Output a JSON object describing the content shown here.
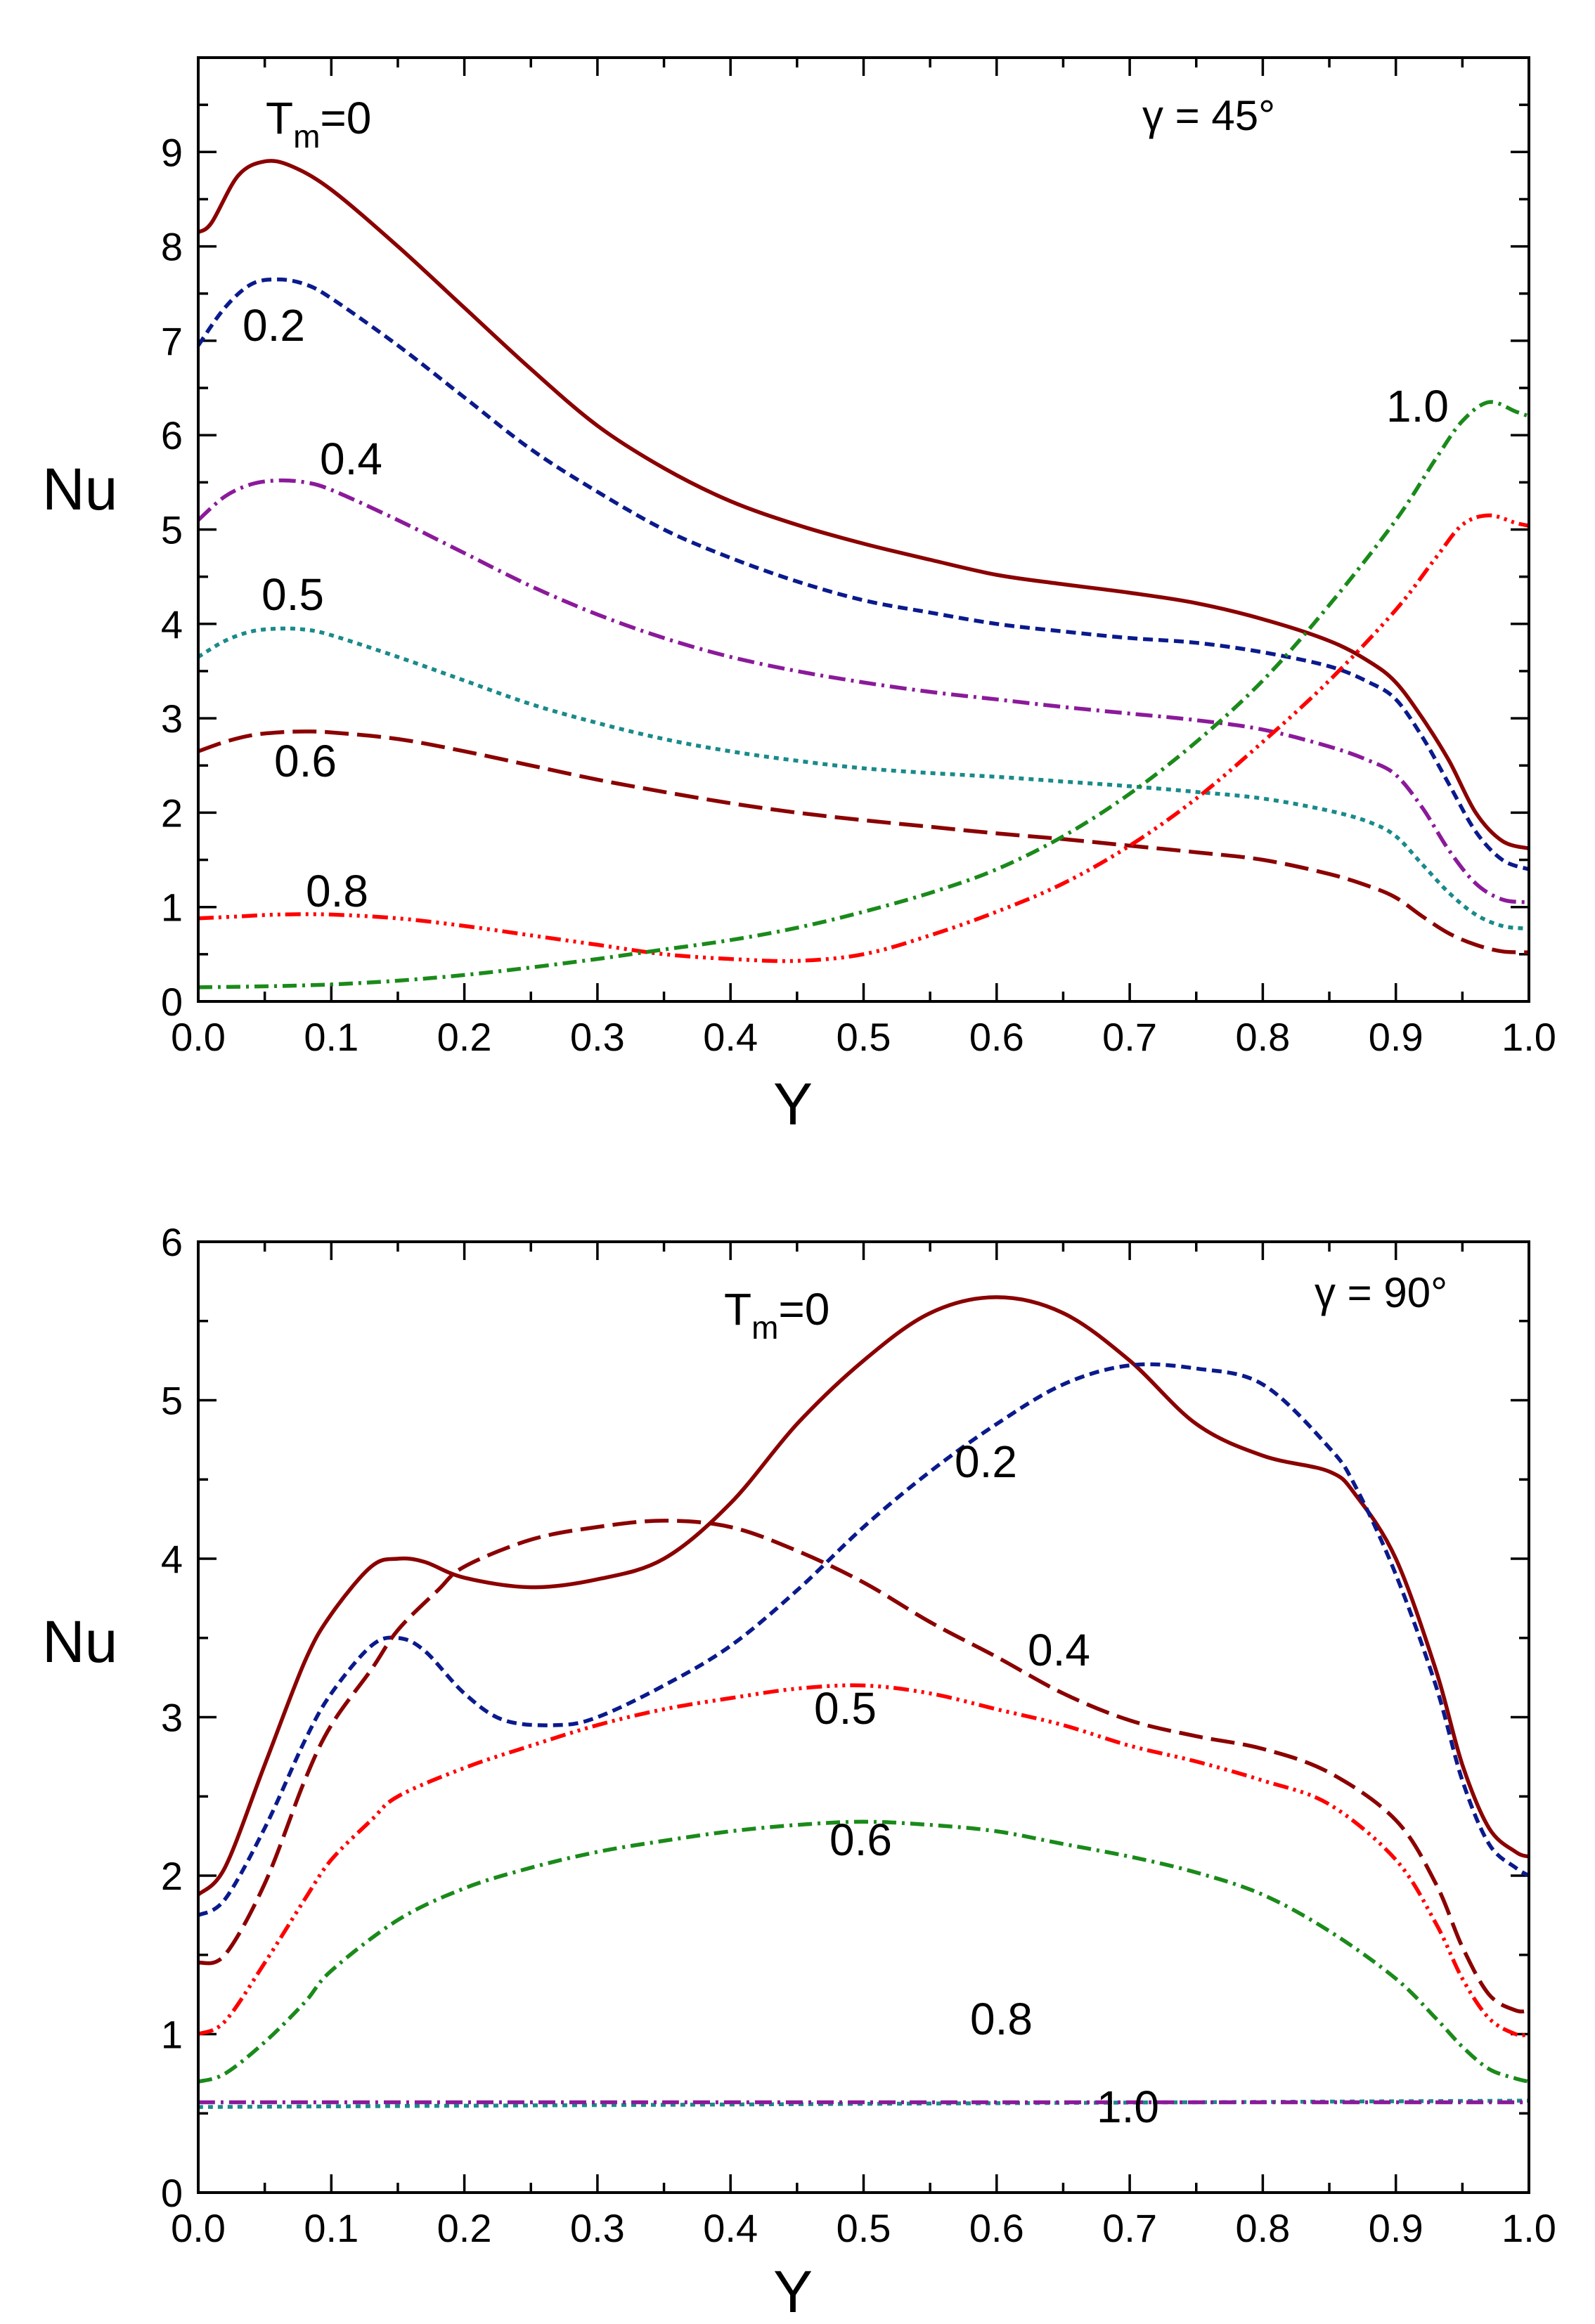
{
  "chart_data": [
    {
      "type": "line",
      "panel": "top",
      "annotation": "γ = 45°",
      "xlabel": "Y",
      "ylabel": "Nu",
      "xlim": [
        0.0,
        1.0
      ],
      "ylim": [
        0,
        10
      ],
      "xticks": [
        "0.0",
        "0.1",
        "0.2",
        "0.3",
        "0.4",
        "0.5",
        "0.6",
        "0.7",
        "0.8",
        "0.9",
        "1.0"
      ],
      "yticks": [
        "0",
        "1",
        "2",
        "3",
        "4",
        "5",
        "6",
        "7",
        "8",
        "9"
      ],
      "legend": "inline labels",
      "series": [
        {
          "name": "Tm=0",
          "label_base": "T",
          "label_sub": "m",
          "label_rest": "=0",
          "color": "#8b0000",
          "dash": "solid",
          "x": [
            0,
            0.01,
            0.03,
            0.05,
            0.07,
            0.1,
            0.15,
            0.2,
            0.25,
            0.3,
            0.35,
            0.4,
            0.45,
            0.5,
            0.55,
            0.6,
            0.65,
            0.7,
            0.75,
            0.8,
            0.85,
            0.88,
            0.9,
            0.92,
            0.94,
            0.96,
            0.98,
            1.0
          ],
          "y": [
            8.15,
            8.25,
            8.75,
            8.9,
            8.85,
            8.6,
            8.0,
            7.35,
            6.7,
            6.1,
            5.65,
            5.3,
            5.05,
            4.85,
            4.68,
            4.52,
            4.42,
            4.33,
            4.22,
            4.05,
            3.82,
            3.6,
            3.38,
            3.0,
            2.55,
            2.0,
            1.7,
            1.62
          ]
        },
        {
          "name": "0.2",
          "color": "#0a1a8c",
          "dash": "14 8",
          "x": [
            0,
            0.02,
            0.04,
            0.06,
            0.08,
            0.1,
            0.15,
            0.2,
            0.25,
            0.3,
            0.35,
            0.4,
            0.45,
            0.5,
            0.55,
            0.6,
            0.65,
            0.7,
            0.75,
            0.8,
            0.85,
            0.88,
            0.9,
            0.92,
            0.94,
            0.96,
            0.98,
            1.0
          ],
          "y": [
            6.95,
            7.35,
            7.6,
            7.65,
            7.6,
            7.45,
            6.95,
            6.4,
            5.85,
            5.4,
            5.0,
            4.7,
            4.45,
            4.25,
            4.12,
            4.0,
            3.92,
            3.85,
            3.8,
            3.7,
            3.55,
            3.38,
            3.2,
            2.8,
            2.3,
            1.8,
            1.5,
            1.4
          ]
        },
        {
          "name": "0.4",
          "color": "#8b1a9a",
          "dash": "24 8 4 8",
          "x": [
            0,
            0.02,
            0.04,
            0.06,
            0.08,
            0.1,
            0.15,
            0.2,
            0.25,
            0.3,
            0.35,
            0.4,
            0.45,
            0.5,
            0.55,
            0.6,
            0.65,
            0.7,
            0.75,
            0.8,
            0.85,
            0.88,
            0.9,
            0.92,
            0.94,
            0.96,
            0.98,
            1.0
          ],
          "y": [
            5.1,
            5.35,
            5.48,
            5.52,
            5.5,
            5.42,
            5.1,
            4.75,
            4.4,
            4.1,
            3.85,
            3.65,
            3.5,
            3.38,
            3.28,
            3.2,
            3.12,
            3.05,
            2.98,
            2.88,
            2.7,
            2.55,
            2.4,
            2.05,
            1.6,
            1.25,
            1.08,
            1.05
          ]
        },
        {
          "name": "0.5",
          "color": "#1a8a8a",
          "dash": "7 7",
          "x": [
            0,
            0.02,
            0.04,
            0.06,
            0.08,
            0.1,
            0.15,
            0.2,
            0.25,
            0.3,
            0.35,
            0.4,
            0.45,
            0.5,
            0.55,
            0.6,
            0.65,
            0.7,
            0.75,
            0.8,
            0.85,
            0.88,
            0.9,
            0.92,
            0.94,
            0.96,
            0.98,
            1.0
          ],
          "y": [
            3.65,
            3.82,
            3.92,
            3.95,
            3.94,
            3.88,
            3.65,
            3.4,
            3.15,
            2.95,
            2.78,
            2.65,
            2.55,
            2.47,
            2.42,
            2.38,
            2.33,
            2.28,
            2.22,
            2.15,
            2.02,
            1.9,
            1.75,
            1.45,
            1.15,
            0.92,
            0.8,
            0.77
          ]
        },
        {
          "name": "0.6",
          "color": "#8b0000",
          "dash": "34 12",
          "x": [
            0,
            0.02,
            0.04,
            0.06,
            0.08,
            0.1,
            0.15,
            0.2,
            0.25,
            0.3,
            0.35,
            0.4,
            0.45,
            0.5,
            0.55,
            0.6,
            0.65,
            0.7,
            0.75,
            0.8,
            0.85,
            0.88,
            0.9,
            0.92,
            0.94,
            0.96,
            0.98,
            1.0
          ],
          "y": [
            2.65,
            2.75,
            2.82,
            2.85,
            2.86,
            2.85,
            2.78,
            2.65,
            2.5,
            2.35,
            2.22,
            2.1,
            2.0,
            1.92,
            1.85,
            1.78,
            1.72,
            1.65,
            1.58,
            1.5,
            1.35,
            1.22,
            1.1,
            0.9,
            0.72,
            0.6,
            0.53,
            0.52
          ]
        },
        {
          "name": "0.8",
          "color": "#ff0000",
          "dash": "22 7 4 7 4 7 4 7",
          "x": [
            0,
            0.03,
            0.06,
            0.1,
            0.15,
            0.2,
            0.25,
            0.3,
            0.35,
            0.4,
            0.45,
            0.5,
            0.55,
            0.6,
            0.65,
            0.7,
            0.75,
            0.8,
            0.85,
            0.9,
            0.93,
            0.95,
            0.97,
            0.99,
            1.0
          ],
          "y": [
            0.88,
            0.9,
            0.92,
            0.92,
            0.88,
            0.8,
            0.7,
            0.6,
            0.5,
            0.45,
            0.43,
            0.5,
            0.7,
            0.95,
            1.25,
            1.65,
            2.15,
            2.75,
            3.4,
            4.15,
            4.7,
            5.05,
            5.15,
            5.07,
            5.04
          ]
        },
        {
          "name": "1.0",
          "color": "#1a8a1a",
          "dash": "20 8 4 8",
          "x": [
            0,
            0.05,
            0.1,
            0.15,
            0.2,
            0.25,
            0.3,
            0.35,
            0.4,
            0.45,
            0.5,
            0.55,
            0.6,
            0.65,
            0.7,
            0.75,
            0.8,
            0.85,
            0.9,
            0.93,
            0.95,
            0.97,
            0.99,
            1.0
          ],
          "y": [
            0.15,
            0.16,
            0.18,
            0.22,
            0.28,
            0.36,
            0.45,
            0.55,
            0.65,
            0.78,
            0.95,
            1.15,
            1.4,
            1.75,
            2.2,
            2.75,
            3.4,
            4.2,
            5.1,
            5.75,
            6.15,
            6.35,
            6.25,
            6.2
          ]
        }
      ]
    },
    {
      "type": "line",
      "panel": "bottom",
      "annotation": "γ = 90°",
      "xlabel": "Y",
      "ylabel": "Nu",
      "xlim": [
        0.0,
        1.0
      ],
      "ylim": [
        0,
        6
      ],
      "xticks": [
        "0.0",
        "0.1",
        "0.2",
        "0.3",
        "0.4",
        "0.5",
        "0.6",
        "0.7",
        "0.8",
        "0.9",
        "1.0"
      ],
      "yticks": [
        "0",
        "1",
        "2",
        "3",
        "4",
        "5",
        "6"
      ],
      "legend": "inline labels",
      "series": [
        {
          "name": "Tm=0",
          "label_base": "T",
          "label_sub": "m",
          "label_rest": "=0",
          "color": "#8b0000",
          "dash": "solid",
          "x": [
            0,
            0.02,
            0.05,
            0.08,
            0.1,
            0.13,
            0.15,
            0.17,
            0.2,
            0.25,
            0.3,
            0.35,
            0.4,
            0.45,
            0.5,
            0.55,
            0.6,
            0.65,
            0.7,
            0.75,
            0.8,
            0.85,
            0.87,
            0.9,
            0.93,
            0.95,
            0.97,
            0.99,
            1.0
          ],
          "y": [
            1.88,
            2.05,
            2.7,
            3.35,
            3.65,
            3.95,
            4.0,
            3.98,
            3.88,
            3.82,
            3.87,
            4.0,
            4.35,
            4.85,
            5.25,
            5.55,
            5.65,
            5.55,
            5.25,
            4.85,
            4.65,
            4.55,
            4.4,
            4.0,
            3.3,
            2.7,
            2.3,
            2.15,
            2.12
          ]
        },
        {
          "name": "0.2",
          "color": "#0a1a8c",
          "dash": "14 8",
          "x": [
            0,
            0.02,
            0.05,
            0.08,
            0.1,
            0.13,
            0.15,
            0.17,
            0.2,
            0.23,
            0.27,
            0.3,
            0.35,
            0.4,
            0.45,
            0.5,
            0.55,
            0.6,
            0.65,
            0.7,
            0.75,
            0.8,
            0.85,
            0.87,
            0.9,
            0.93,
            0.95,
            0.97,
            0.99,
            1.0
          ],
          "y": [
            1.75,
            1.85,
            2.3,
            2.85,
            3.15,
            3.45,
            3.5,
            3.42,
            3.15,
            2.98,
            2.95,
            3.0,
            3.2,
            3.45,
            3.8,
            4.2,
            4.55,
            4.85,
            5.1,
            5.22,
            5.2,
            5.1,
            4.7,
            4.45,
            3.9,
            3.2,
            2.6,
            2.2,
            2.05,
            2.0
          ]
        },
        {
          "name": "0.4",
          "color": "#8b0000",
          "dash": "34 12",
          "x": [
            0,
            0.02,
            0.05,
            0.08,
            0.1,
            0.13,
            0.15,
            0.18,
            0.2,
            0.25,
            0.3,
            0.35,
            0.4,
            0.45,
            0.5,
            0.55,
            0.6,
            0.65,
            0.7,
            0.75,
            0.8,
            0.85,
            0.9,
            0.93,
            0.95,
            0.97,
            0.99,
            1.0
          ],
          "y": [
            1.45,
            1.5,
            1.95,
            2.6,
            2.95,
            3.3,
            3.55,
            3.8,
            3.95,
            4.12,
            4.2,
            4.24,
            4.2,
            4.05,
            3.85,
            3.6,
            3.38,
            3.15,
            2.98,
            2.88,
            2.8,
            2.65,
            2.35,
            1.95,
            1.55,
            1.25,
            1.15,
            1.15
          ]
        },
        {
          "name": "0.5",
          "color": "#ff0000",
          "dash": "22 7 4 7 4 7 4 7",
          "x": [
            0,
            0.02,
            0.05,
            0.08,
            0.1,
            0.13,
            0.15,
            0.2,
            0.25,
            0.3,
            0.35,
            0.4,
            0.45,
            0.5,
            0.55,
            0.6,
            0.65,
            0.7,
            0.75,
            0.8,
            0.85,
            0.9,
            0.93,
            0.95,
            0.97,
            0.99,
            1.0
          ],
          "y": [
            1.0,
            1.08,
            1.45,
            1.85,
            2.1,
            2.35,
            2.5,
            2.68,
            2.82,
            2.95,
            3.05,
            3.12,
            3.18,
            3.2,
            3.15,
            3.05,
            2.95,
            2.82,
            2.72,
            2.6,
            2.45,
            2.1,
            1.7,
            1.35,
            1.1,
            1.0,
            1.0
          ]
        },
        {
          "name": "0.6",
          "color": "#1a8a1a",
          "dash": "20 8 4 8",
          "x": [
            0,
            0.02,
            0.05,
            0.08,
            0.1,
            0.15,
            0.2,
            0.25,
            0.3,
            0.35,
            0.4,
            0.45,
            0.5,
            0.55,
            0.6,
            0.65,
            0.7,
            0.75,
            0.8,
            0.85,
            0.9,
            0.93,
            0.95,
            0.97,
            0.99,
            1.0
          ],
          "y": [
            0.7,
            0.75,
            0.95,
            1.2,
            1.4,
            1.72,
            1.92,
            2.05,
            2.15,
            2.22,
            2.28,
            2.32,
            2.34,
            2.32,
            2.28,
            2.2,
            2.12,
            2.02,
            1.88,
            1.65,
            1.35,
            1.1,
            0.92,
            0.78,
            0.72,
            0.7
          ]
        },
        {
          "name": "0.8",
          "color": "#1a8a8a",
          "dash": "7 7",
          "x": [
            0,
            1.0
          ],
          "y": [
            0.54,
            0.58
          ]
        },
        {
          "name": "1.0",
          "color": "#8b1a9a",
          "dash": "24 8 4 8",
          "x": [
            0,
            1.0
          ],
          "y": [
            0.57,
            0.57
          ]
        }
      ]
    }
  ]
}
